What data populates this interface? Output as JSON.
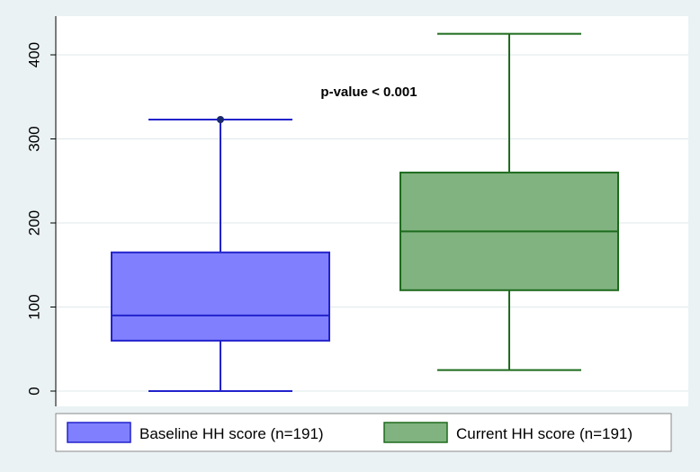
{
  "chart_data": {
    "type": "box",
    "title": "",
    "xlabel": "",
    "ylabel": "",
    "ylim": [
      0,
      425
    ],
    "yticks": [
      0,
      100,
      200,
      300,
      400
    ],
    "grid": "horizontal",
    "legend_position": "bottom",
    "annotation": "p-value < 0.001",
    "series": [
      {
        "name": "Baseline HH score (n=191)",
        "color": "#8080ff",
        "edge_color": "#2222cc",
        "min": 0,
        "q1": 60,
        "median": 90,
        "q3": 165,
        "max": 323,
        "outliers": [
          323
        ]
      },
      {
        "name": "Current HH score (n=191)",
        "color": "#80b380",
        "edge_color": "#1e6b1e",
        "min": 25,
        "q1": 120,
        "median": 190,
        "q3": 260,
        "max": 425,
        "outliers": []
      }
    ]
  }
}
